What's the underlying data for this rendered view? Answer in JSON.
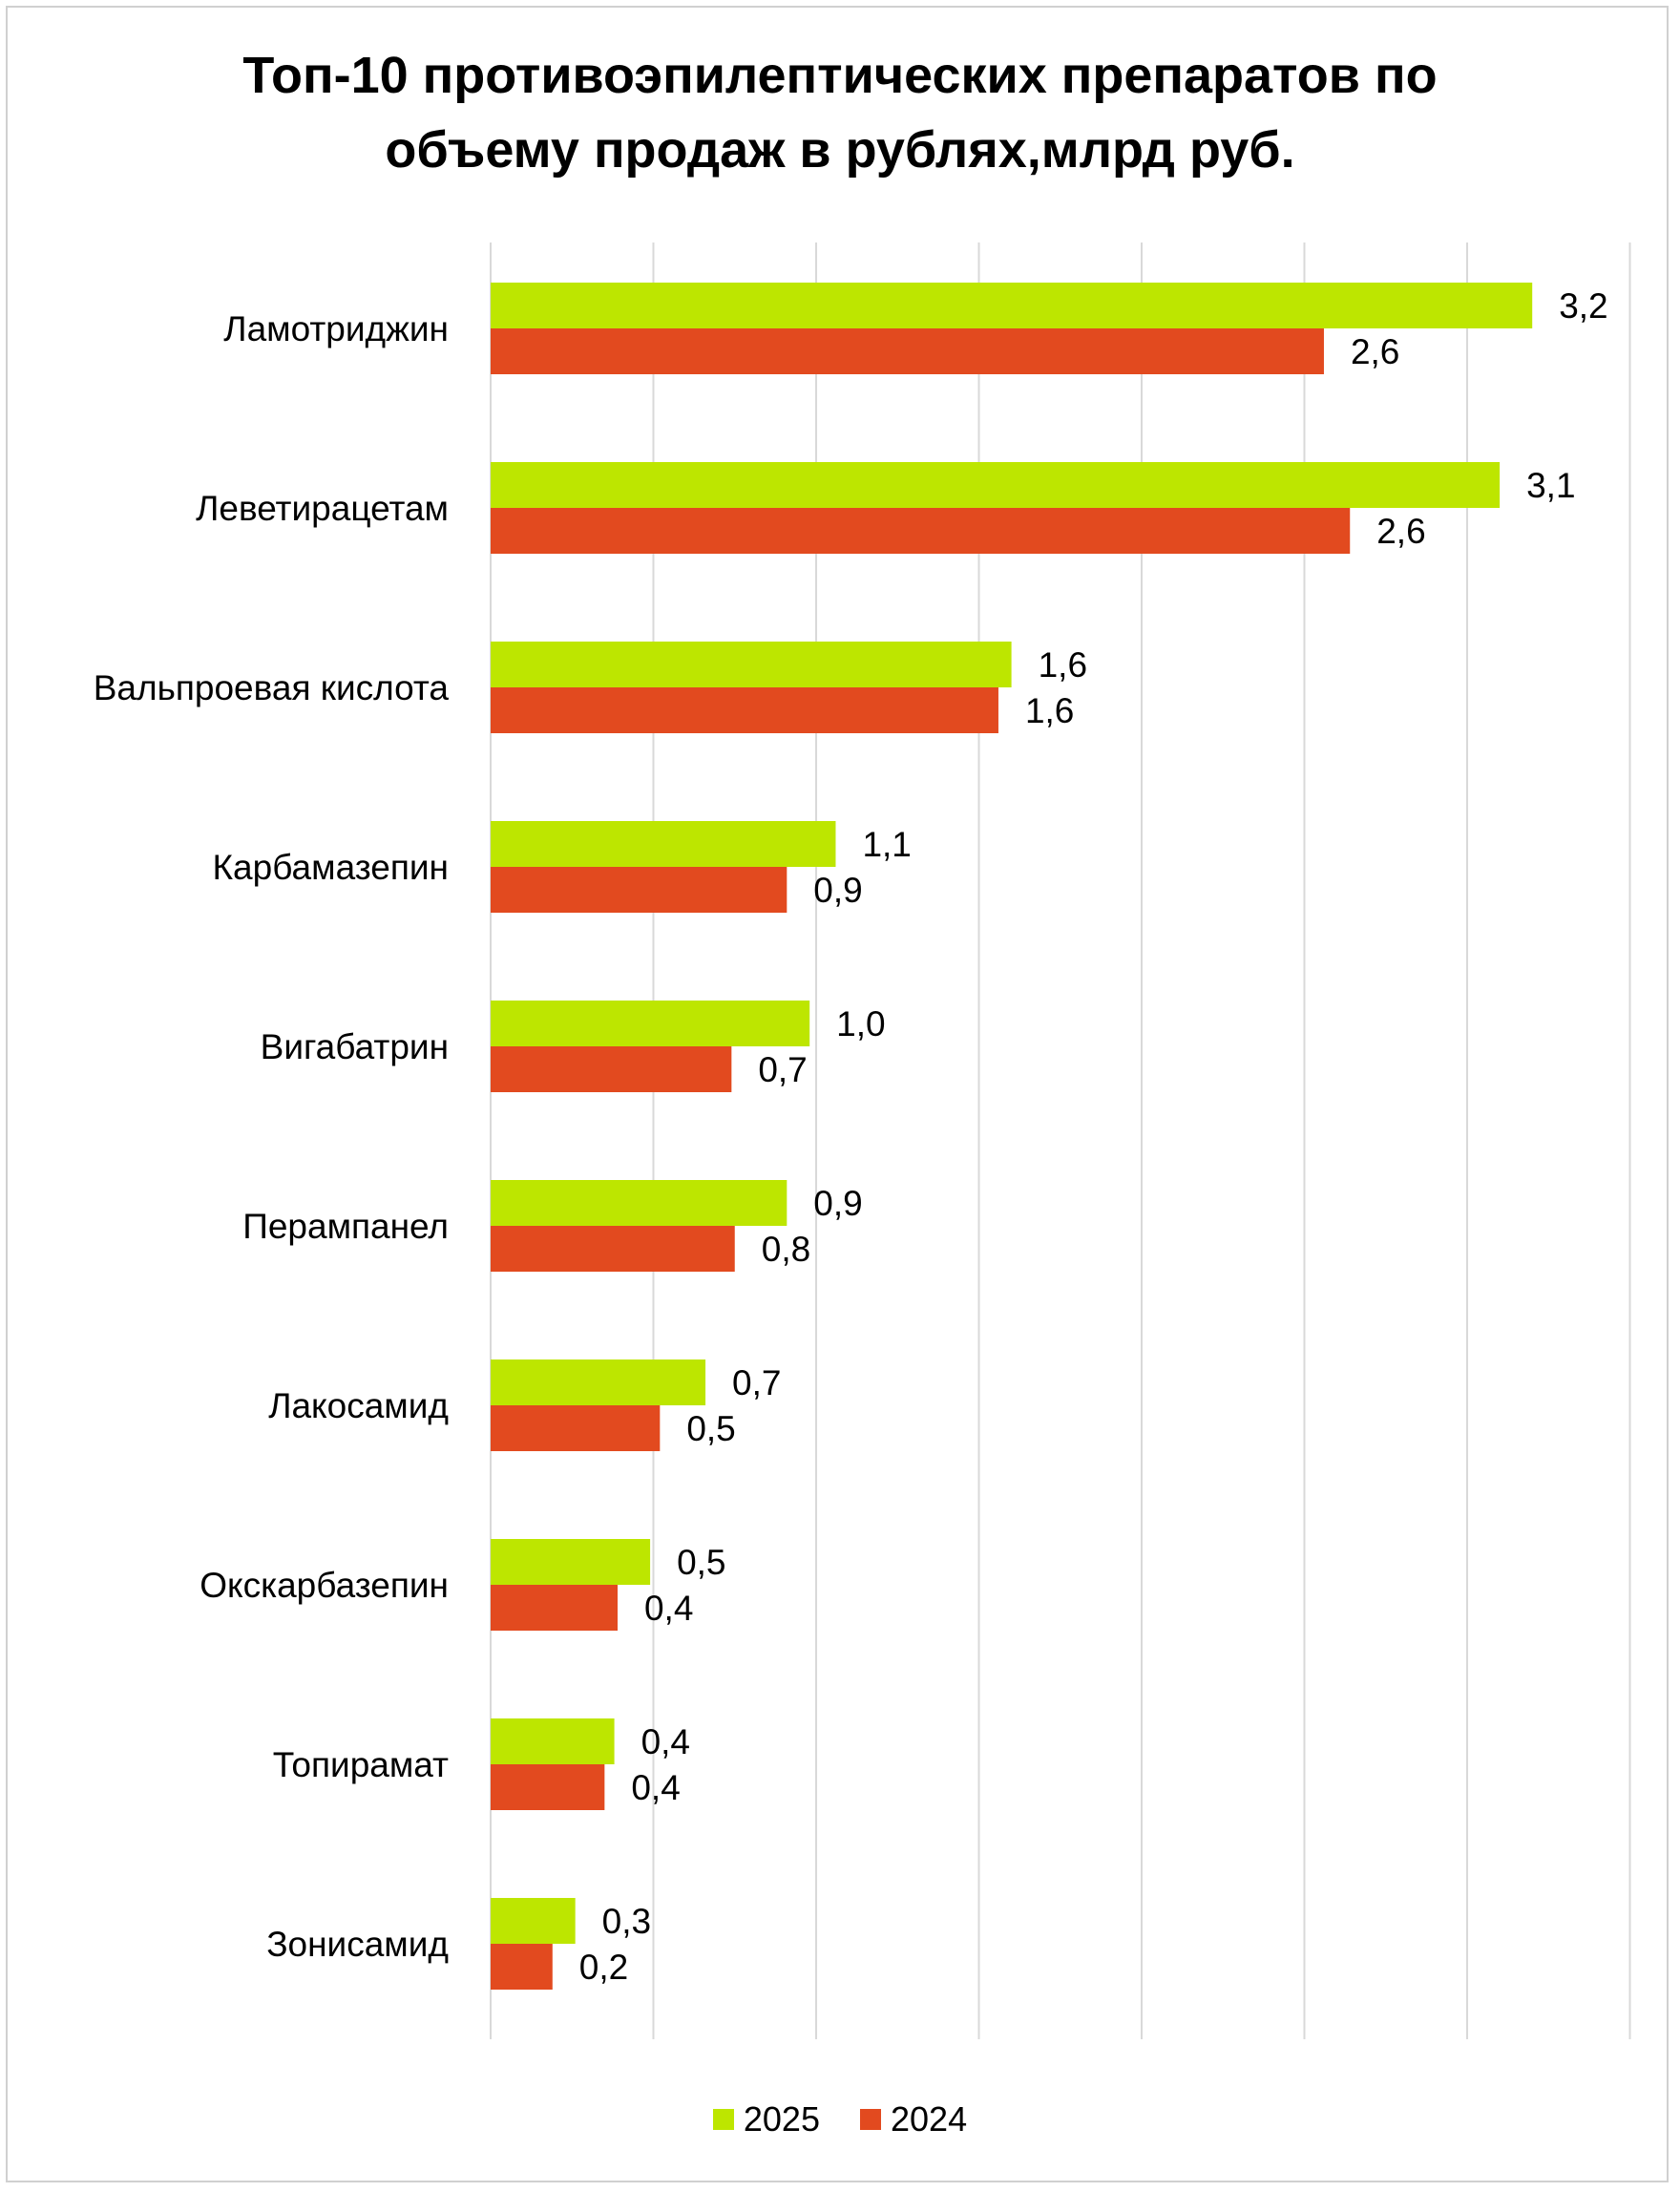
{
  "chart_data": {
    "type": "bar",
    "orientation": "horizontal",
    "title_lines": [
      "Топ-10 противоэпилептических препаратов по",
      "объему продаж в рублях,млрд руб."
    ],
    "categories": [
      "Ламотриджин",
      "Леветирацетам",
      "Вальпроевая кислота",
      "Карбамазепин",
      "Вигабатрин",
      "Перампанел",
      "Лакосамид",
      "Окскарбазепин",
      "Топирамат",
      "Зонисамид"
    ],
    "series": [
      {
        "name": "2025",
        "color": "#bde600",
        "values": [
          3.2,
          3.1,
          1.6,
          1.06,
          0.98,
          0.91,
          0.66,
          0.49,
          0.38,
          0.26
        ],
        "labels": [
          "3,2",
          "3,1",
          "1,6",
          "1,1",
          "1,0",
          "0,9",
          "0,7",
          "0,5",
          "0,4",
          "0,3"
        ]
      },
      {
        "name": "2024",
        "color": "#e24a1f",
        "values": [
          2.56,
          2.64,
          1.56,
          0.91,
          0.74,
          0.75,
          0.52,
          0.39,
          0.35,
          0.19
        ],
        "labels": [
          "2,6",
          "2,6",
          "1,6",
          "0,9",
          "0,7",
          "0,8",
          "0,5",
          "0,4",
          "0,4",
          "0,2"
        ]
      }
    ],
    "xlim": [
      0,
      3.5
    ],
    "grid": true,
    "gridline_step": 0.5,
    "legend_position": "bottom",
    "xlabel": "",
    "ylabel": ""
  }
}
